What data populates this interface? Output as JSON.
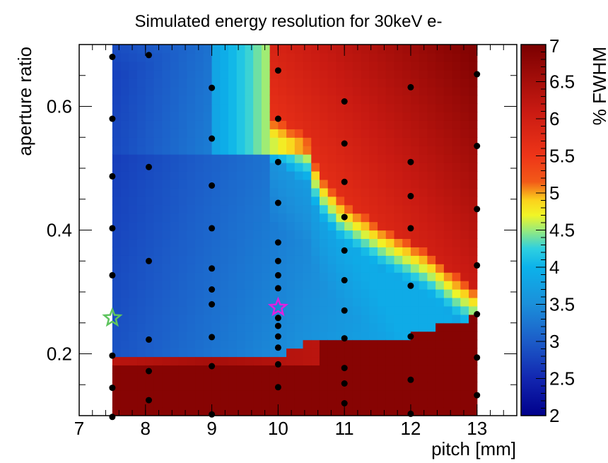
{
  "chart_data": {
    "type": "heatmap",
    "title": "Simulated energy resolution for 30keV e-",
    "xlabel": "pitch [mm]",
    "ylabel": "aperture ratio",
    "zlabel": "% FWHM",
    "xlim": [
      7,
      13.6
    ],
    "ylim": [
      0.1,
      0.7
    ],
    "zlim": [
      2,
      7
    ],
    "x_ticks": [
      "7",
      "8",
      "9",
      "10",
      "11",
      "12",
      "13"
    ],
    "y_ticks": [
      "0.2",
      "0.4",
      "0.6"
    ],
    "z_ticks": [
      "2",
      "2.5",
      "3",
      "3.5",
      "4",
      "4.5",
      "5",
      "5.5",
      "6",
      "6.5",
      "7"
    ],
    "heatmap_x_range": [
      7.5,
      13
    ],
    "heatmap_y_range": [
      0.1,
      0.7
    ],
    "regions": [
      {
        "name": "low aperture region",
        "value": 6.8
      },
      {
        "name": "small pitch / mid aperture region",
        "value": 3.0
      },
      {
        "name": "large pitch / high aperture region",
        "value": 5.8
      }
    ],
    "simulation_points": [
      [
        7.5,
        0.68
      ],
      [
        7.5,
        0.58
      ],
      [
        7.5,
        0.487
      ],
      [
        7.5,
        0.403
      ],
      [
        7.5,
        0.327
      ],
      [
        7.5,
        0.197
      ],
      [
        7.5,
        0.145
      ],
      [
        7.5,
        0.098
      ],
      [
        8.05,
        0.683
      ],
      [
        8.05,
        0.502
      ],
      [
        8.05,
        0.35
      ],
      [
        8.05,
        0.223
      ],
      [
        8.05,
        0.172
      ],
      [
        8.05,
        0.125
      ],
      [
        9,
        0.63
      ],
      [
        9,
        0.548
      ],
      [
        9,
        0.472
      ],
      [
        9,
        0.403
      ],
      [
        9,
        0.338
      ],
      [
        9,
        0.304
      ],
      [
        9,
        0.28
      ],
      [
        9,
        0.227
      ],
      [
        9,
        0.18
      ],
      [
        9,
        0.102
      ],
      [
        10,
        0.658
      ],
      [
        10,
        0.58
      ],
      [
        10,
        0.51
      ],
      [
        10,
        0.444
      ],
      [
        10,
        0.38
      ],
      [
        10,
        0.35
      ],
      [
        10,
        0.327
      ],
      [
        10,
        0.306
      ],
      [
        10,
        0.258
      ],
      [
        10,
        0.245
      ],
      [
        10,
        0.228
      ],
      [
        10,
        0.21
      ],
      [
        10,
        0.183
      ],
      [
        10,
        0.146
      ],
      [
        11,
        0.608
      ],
      [
        11,
        0.54
      ],
      [
        11,
        0.478
      ],
      [
        11,
        0.421
      ],
      [
        11,
        0.367
      ],
      [
        11,
        0.319
      ],
      [
        11,
        0.27
      ],
      [
        11,
        0.225
      ],
      [
        11,
        0.177
      ],
      [
        11,
        0.152
      ],
      [
        11,
        0.12
      ],
      [
        12,
        0.631
      ],
      [
        12,
        0.51
      ],
      [
        12,
        0.455
      ],
      [
        12,
        0.403
      ],
      [
        12,
        0.31
      ],
      [
        12,
        0.228
      ],
      [
        12,
        0.158
      ],
      [
        12,
        0.103
      ],
      [
        13,
        0.652
      ],
      [
        13,
        0.536
      ],
      [
        13,
        0.434
      ],
      [
        13,
        0.343
      ],
      [
        13,
        0.264
      ],
      [
        13,
        0.194
      ],
      [
        13,
        0.133
      ]
    ],
    "markers": [
      {
        "type": "star",
        "x": 7.5,
        "y": 0.258,
        "color": "#5ec45e"
      },
      {
        "type": "star",
        "x": 10,
        "y": 0.275,
        "color": "#e020e0"
      }
    ],
    "colors": {
      "low": "#00008b",
      "mid": "#00b8ef",
      "yellow": "#ffff00",
      "high": "#7a0000",
      "points": "#000000"
    }
  }
}
